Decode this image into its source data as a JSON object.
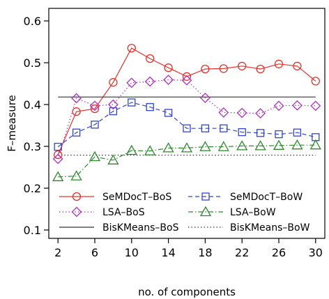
{
  "chart_data": {
    "type": "line",
    "xlabel": "no. of components",
    "ylabel": "F–measure",
    "x": [
      2,
      4,
      6,
      8,
      10,
      12,
      14,
      16,
      18,
      20,
      22,
      24,
      26,
      28,
      30
    ],
    "xticks": [
      2,
      6,
      10,
      14,
      18,
      22,
      26,
      30
    ],
    "xtick_labels": [
      "2",
      "6",
      "10",
      "14",
      "18",
      "22",
      "26",
      "30"
    ],
    "yticks": [
      0.1,
      0.2,
      0.3,
      0.4,
      0.5,
      0.6
    ],
    "ytick_labels": [
      "0.1",
      "0.2",
      "0.3",
      "0.4",
      "0.5",
      "0.6"
    ],
    "xlim": [
      1,
      31
    ],
    "ylim": [
      0.08,
      0.63
    ],
    "grid": false,
    "legend_position": "bottom",
    "series": [
      {
        "name": "SeMDocT–BoS",
        "color": "#e8302a",
        "dash": "solid",
        "marker": "circle",
        "values": [
          0.28,
          0.383,
          0.39,
          0.453,
          0.535,
          0.51,
          0.488,
          0.467,
          0.485,
          0.486,
          0.492,
          0.485,
          0.497,
          0.492,
          0.456
        ]
      },
      {
        "name": "SeMDocT–BoW",
        "color": "#2f44d4",
        "dash": "dashed",
        "marker": "square",
        "values": [
          0.299,
          0.333,
          0.352,
          0.384,
          0.405,
          0.394,
          0.38,
          0.343,
          0.343,
          0.343,
          0.334,
          0.332,
          0.329,
          0.333,
          0.322
        ]
      },
      {
        "name": "LSA–BoS",
        "color": "#b02fc0",
        "dash": "dotted",
        "marker": "diamond",
        "values": [
          0.27,
          0.415,
          0.397,
          0.4,
          0.452,
          0.455,
          0.459,
          0.458,
          0.416,
          0.381,
          0.38,
          0.379,
          0.397,
          0.398,
          0.397
        ]
      },
      {
        "name": "LSA–BoW",
        "color": "#2a8a2a",
        "dash": "dashdot",
        "marker": "triangle",
        "values": [
          0.227,
          0.229,
          0.275,
          0.267,
          0.29,
          0.289,
          0.296,
          0.296,
          0.299,
          0.299,
          0.301,
          0.301,
          0.302,
          0.303,
          0.303
        ]
      },
      {
        "name": "BisKMeans–BoS",
        "color": "#333333",
        "dash": "solid",
        "marker": "none",
        "values": [
          0.418,
          0.418,
          0.418,
          0.418,
          0.418,
          0.418,
          0.418,
          0.418,
          0.418,
          0.418,
          0.418,
          0.418,
          0.418,
          0.418,
          0.418
        ]
      },
      {
        "name": "BisKMeans–BoW",
        "color": "#333333",
        "dash": "dotted",
        "marker": "none",
        "values": [
          0.279,
          0.279,
          0.279,
          0.279,
          0.279,
          0.279,
          0.279,
          0.279,
          0.279,
          0.279,
          0.279,
          0.279,
          0.279,
          0.279,
          0.279
        ]
      }
    ],
    "legend_order": [
      0,
      1,
      2,
      3,
      4,
      5
    ]
  }
}
